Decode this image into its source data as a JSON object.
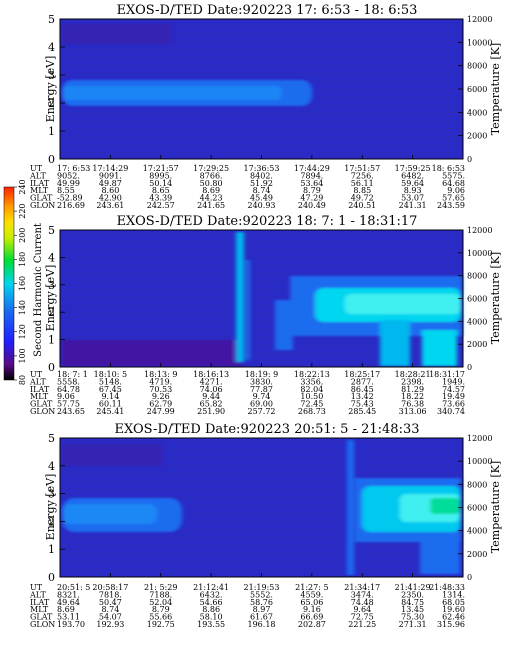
{
  "chart_data": {
    "type": "heatmap",
    "colorbar": {
      "label": "Second Harmonic Current",
      "ticks": [
        "80",
        "100",
        "120",
        "140",
        "160",
        "180",
        "200",
        "220",
        "240"
      ],
      "colors": [
        "#000000",
        "#5a0a84",
        "#2020ff",
        "#1a6cf0",
        "#00d6ef",
        "#00dd33",
        "#ccee00",
        "#ffdd00",
        "#ff9900",
        "#ff2200"
      ]
    },
    "panels": [
      {
        "title": "EXOS-D/TED   Date:920223  17: 6:53 - 18: 6:53",
        "ylabel": "Energy [eV]",
        "y2label": "Temperature [K]",
        "ylim": [
          0,
          5
        ],
        "y2lim": [
          0,
          12000
        ],
        "yticks": [
          "0",
          "1",
          "2",
          "3",
          "4",
          "5"
        ],
        "y2ticks": [
          "0",
          "2000",
          "4000",
          "6000",
          "8000",
          "10000",
          "12000"
        ],
        "row_labels": [
          "UT",
          "ALT",
          "ILAT",
          "MLT",
          "GLAT",
          "GLON"
        ],
        "columns": [
          [
            "17: 6:53",
            "9052.",
            "49.99",
            "8.55",
            "-52.89",
            "216.69"
          ],
          [
            "17:14:29",
            "9091.",
            "49.87",
            "8.60",
            "42.90",
            "243.61"
          ],
          [
            "17:21:57",
            "8995.",
            "50.14",
            "8.65",
            "43.39",
            "242.57"
          ],
          [
            "17:29:25",
            "8766.",
            "50.80",
            "8.69",
            "44.23",
            "241.65"
          ],
          [
            "17:36:53",
            "8402.",
            "51.92",
            "8.74",
            "45.49",
            "240.93"
          ],
          [
            "17:44:29",
            "7894.",
            "53.64",
            "8.79",
            "47.29",
            "240.49"
          ],
          [
            "17:51:57",
            "7256.",
            "56.11",
            "8.85",
            "49.72",
            "240.51"
          ],
          [
            "17:59:25",
            "6482.",
            "59.64",
            "8.93",
            "53.07",
            "241.31"
          ],
          [
            "18: 6:53",
            "5575.",
            "64.68",
            "9.06",
            "57.65",
            "243.59"
          ]
        ]
      },
      {
        "title": "EXOS-D/TED   Date:920223  18: 7: 1 - 18:31:17",
        "ylabel": "Energy [eV]",
        "y2label": "Temperature [K]",
        "ylim": [
          0,
          5
        ],
        "y2lim": [
          0,
          12000
        ],
        "yticks": [
          "0",
          "1",
          "2",
          "3",
          "4",
          "5"
        ],
        "y2ticks": [
          "0",
          "2000",
          "4000",
          "6000",
          "8000",
          "10000",
          "12000"
        ],
        "row_labels": [
          "UT",
          "ALT",
          "ILAT",
          "MLT",
          "GLAT",
          "GLON"
        ],
        "columns": [
          [
            "18: 7: 1",
            "5558.",
            "64.78",
            "9.06",
            "57.75",
            "243.65"
          ],
          [
            "18:10: 5",
            "5148.",
            "67.45",
            "9.14",
            "60.11",
            "245.41"
          ],
          [
            "18:13: 9",
            "4719.",
            "70.53",
            "9.26",
            "62.79",
            "247.99"
          ],
          [
            "18:16:13",
            "4271.",
            "74.06",
            "9.44",
            "65.82",
            "251.90"
          ],
          [
            "18:19: 9",
            "3830.",
            "77.87",
            "9.74",
            "69.00",
            "257.72"
          ],
          [
            "18:22:13",
            "3356.",
            "82.04",
            "10.50",
            "72.45",
            "268.73"
          ],
          [
            "18:25:17",
            "2877.",
            "86.45",
            "13.42",
            "75.43",
            "285.45"
          ],
          [
            "18:28:21",
            "2398.",
            "81.29",
            "18.22",
            "76.38",
            "313.06"
          ],
          [
            "18:31:17",
            "1949.",
            "74.57",
            "19.49",
            "73.66",
            "340.74"
          ]
        ]
      },
      {
        "title": "EXOS-D/TED   Date:920223  20:51: 5 - 21:48:33",
        "ylabel": "Energy [eV]",
        "y2label": "Temperature [K]",
        "ylim": [
          0,
          5
        ],
        "y2lim": [
          0,
          12000
        ],
        "yticks": [
          "0",
          "1",
          "2",
          "3",
          "4",
          "5"
        ],
        "y2ticks": [
          "0",
          "2000",
          "4000",
          "6000",
          "8000",
          "10000",
          "12000"
        ],
        "row_labels": [
          "UT",
          "ALT",
          "ILAT",
          "MLT",
          "GLAT",
          "GLON"
        ],
        "columns": [
          [
            "20:51: 5",
            "8321.",
            "49.64",
            "8.69",
            "53.11",
            "193.70"
          ],
          [
            "20:58:17",
            "7818.",
            "50.47",
            "8.74",
            "54.07",
            "192.93"
          ],
          [
            "21: 5:29",
            "7188.",
            "52.04",
            "8.79",
            "55.66",
            "192.75"
          ],
          [
            "21:12:41",
            "6432.",
            "54.66",
            "8.86",
            "58.10",
            "193.55"
          ],
          [
            "21:19:53",
            "5552.",
            "58.76",
            "8.97",
            "61.67",
            "196.18"
          ],
          [
            "21:27: 5",
            "4559.",
            "65.06",
            "9.16",
            "66.69",
            "202.87"
          ],
          [
            "21:34:17",
            "3474.",
            "74.48",
            "9.64",
            "72.75",
            "221.25"
          ],
          [
            "21:41:29",
            "2350.",
            "84.75",
            "13.45",
            "75.30",
            "271.31"
          ],
          [
            "21:48:33",
            "1314.",
            "68.05",
            "19.60",
            "62.46",
            "315.96"
          ]
        ]
      }
    ]
  }
}
